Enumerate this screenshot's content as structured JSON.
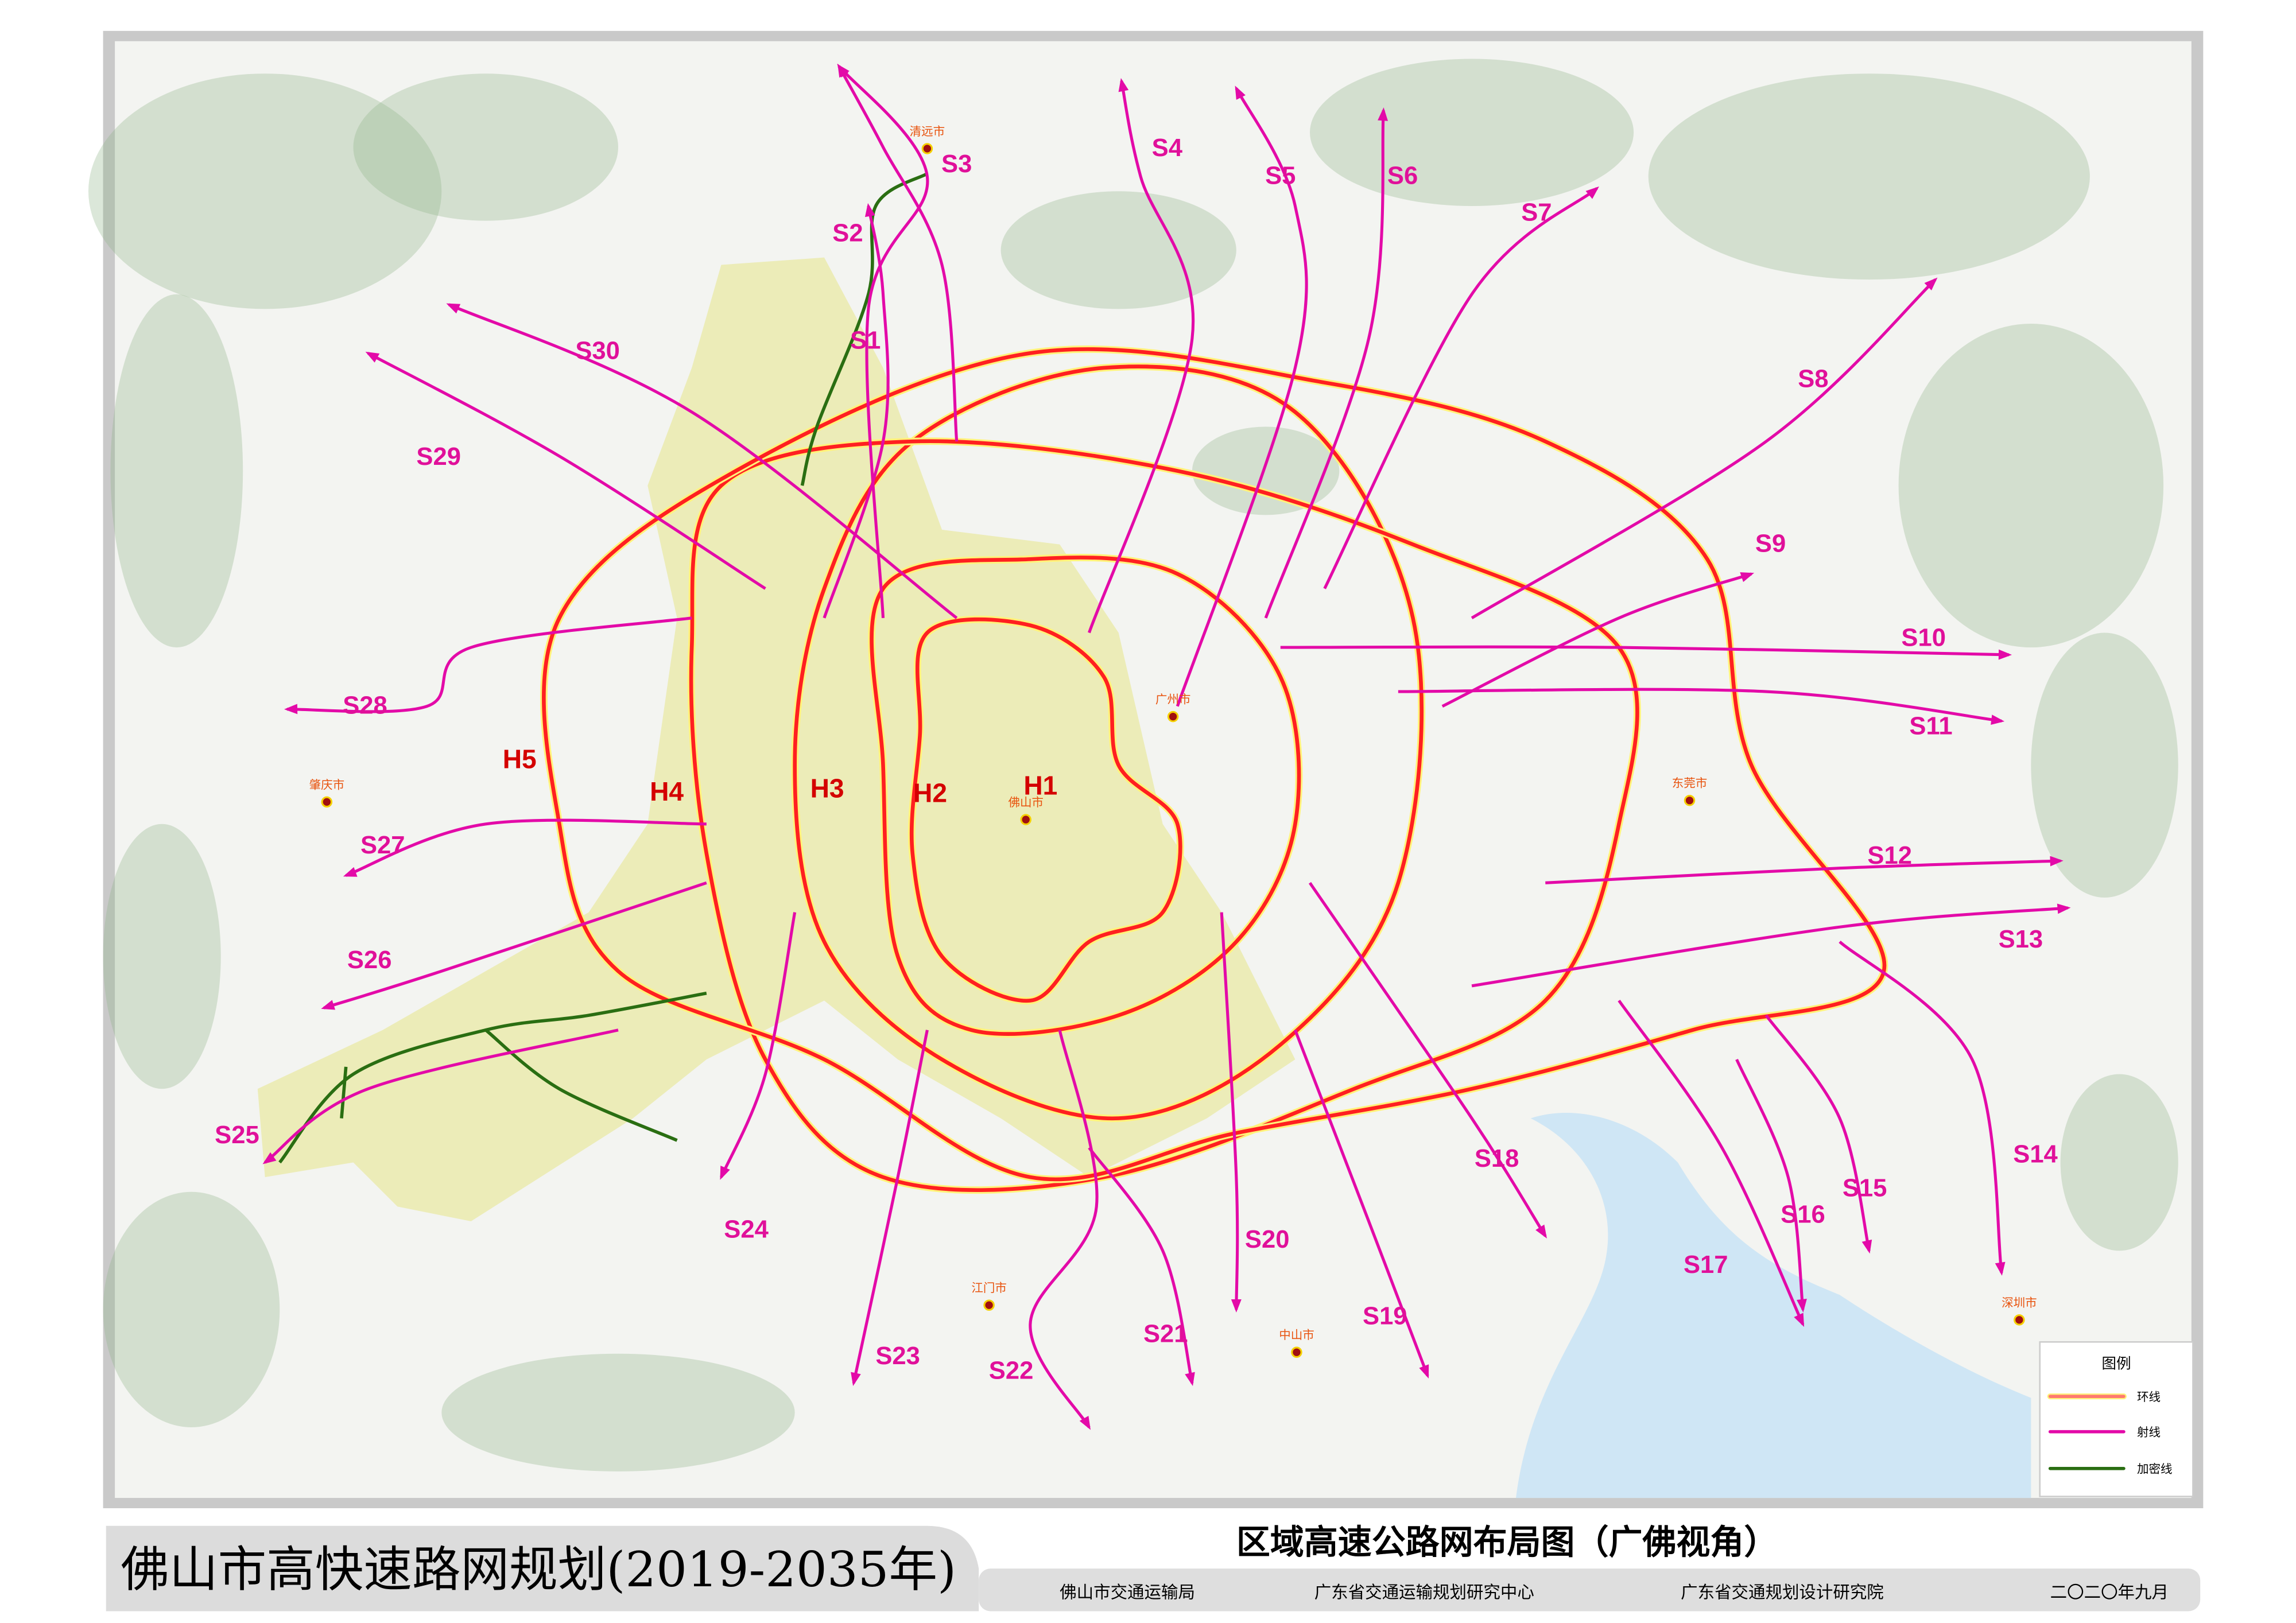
{
  "map": {
    "title": "佛山市高快速路网规划(2019-2035年)",
    "subtitle": "区域高速公路网布局图（广佛视角）",
    "credits": [
      "佛山市交通运输局",
      "广东省交通运输规划研究中心",
      "广东省交通规划设计研究院"
    ],
    "date": "二〇二〇年九月",
    "legend": {
      "title": "图例",
      "items": [
        {
          "label": "环线",
          "color": "#ff2020",
          "edge": "#fff27a"
        },
        {
          "label": "射线",
          "color": "#e30aa8"
        },
        {
          "label": "加密线",
          "color": "#2a6e12"
        }
      ]
    },
    "rings": [
      "H1",
      "H2",
      "H3",
      "H4",
      "H5"
    ],
    "radials": [
      "S1",
      "S2",
      "S3",
      "S4",
      "S5",
      "S6",
      "S7",
      "S8",
      "S9",
      "S10",
      "S11",
      "S12",
      "S13",
      "S14",
      "S15",
      "S16",
      "S17",
      "S18",
      "S19",
      "S20",
      "S21",
      "S22",
      "S23",
      "S24",
      "S25",
      "S26",
      "S27",
      "S28",
      "S29",
      "S30"
    ],
    "cities": [
      "清远市",
      "广州市",
      "佛山市",
      "肇庆市",
      "东莞市",
      "江门市",
      "中山市",
      "深圳市"
    ],
    "colors": {
      "ring": "#ff2020",
      "ring_edge": "#fff27a",
      "radial": "#e30aa8",
      "densify": "#2a6e12",
      "sea": "#cfe6f5",
      "terrain": "#8fb48a"
    }
  }
}
